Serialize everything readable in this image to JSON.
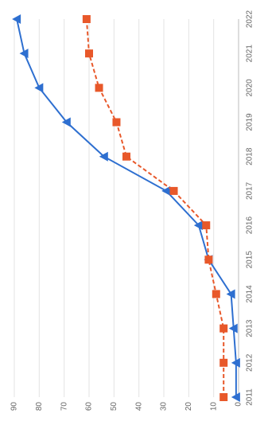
{
  "chart_data": {
    "type": "line",
    "categories": [
      "2011",
      "2012",
      "2013",
      "2014",
      "2015",
      "2016",
      "2017",
      "2018",
      "2019",
      "2020",
      "2021",
      "2022"
    ],
    "series": [
      {
        "color": "#2e6fd0",
        "marker": "triangle",
        "dashed": false,
        "values": [
          1,
          1,
          2,
          3,
          12,
          16,
          29,
          54,
          69,
          80,
          86,
          89
        ]
      },
      {
        "color": "#e8582a",
        "marker": "square",
        "dashed": true,
        "values": [
          6,
          6,
          6,
          9,
          12,
          13,
          26,
          45,
          49,
          56,
          60,
          61
        ]
      }
    ],
    "ylim": [
      0,
      90
    ],
    "yticks": [
      0,
      10,
      20,
      30,
      40,
      50,
      60,
      70,
      80,
      90
    ],
    "grid": true,
    "rotated": true
  }
}
